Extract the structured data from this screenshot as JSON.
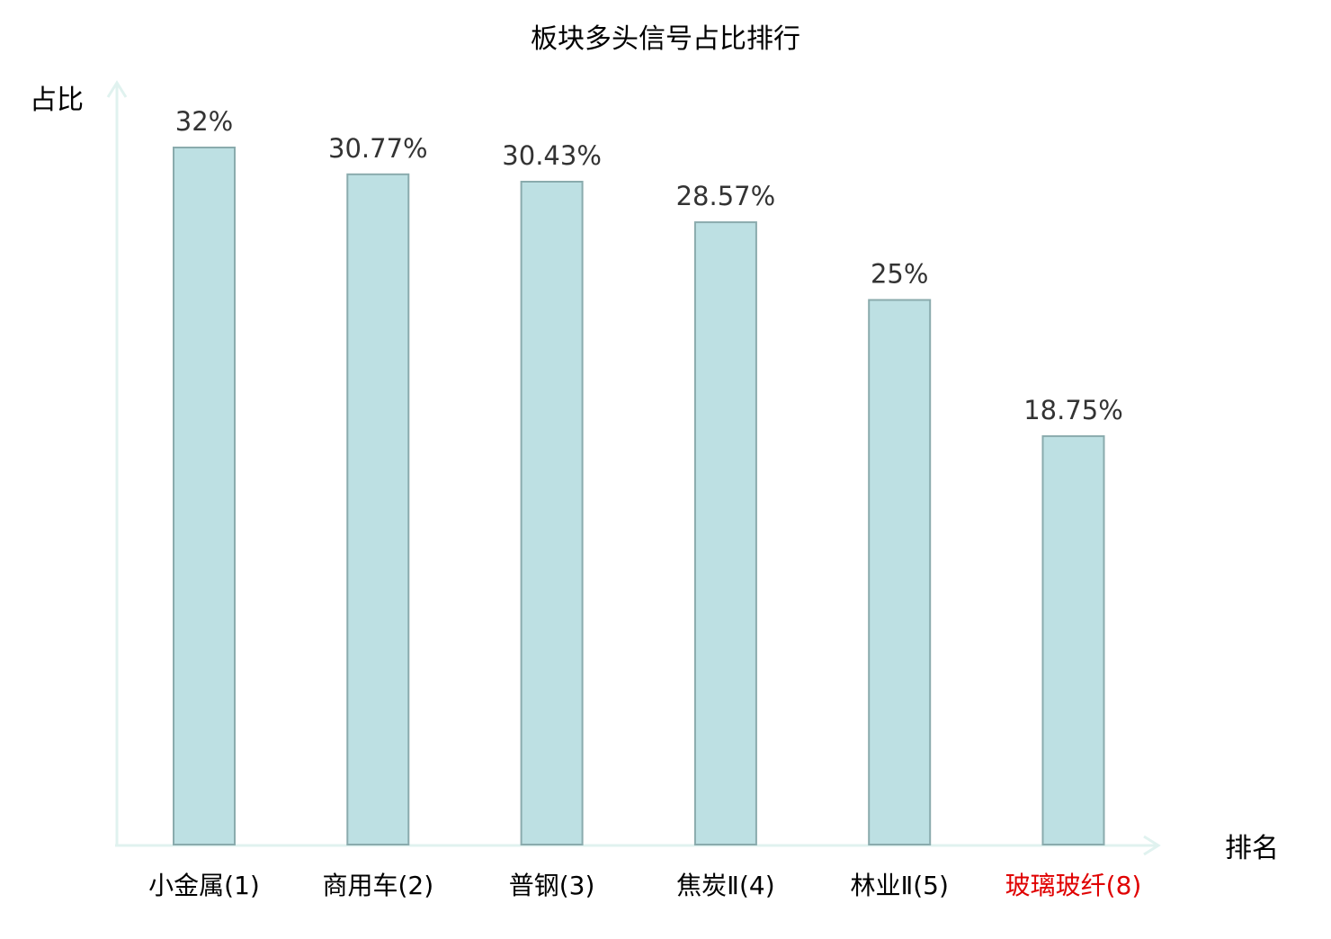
{
  "chart_data": {
    "type": "bar",
    "title": "板块多头信号占比排行",
    "xlabel": "排名",
    "ylabel": "占比",
    "categories": [
      "小金属(1)",
      "商用车(2)",
      "普钢(3)",
      "焦炭Ⅱ(4)",
      "林业Ⅱ(5)",
      "玻璃玻纤(8)"
    ],
    "values": [
      32,
      30.77,
      30.43,
      28.57,
      25,
      18.75
    ],
    "value_labels": [
      "32%",
      "30.77%",
      "30.43%",
      "28.57%",
      "25%",
      "18.75%"
    ],
    "highlight_index": 5,
    "ylim": [
      0,
      32
    ],
    "grid": false,
    "legend": "none"
  },
  "colors": {
    "bar_fill": "#bde0e3",
    "bar_stroke": "#8aabad",
    "axis": "#e0f2ef",
    "title": "#000000",
    "value_label": "#333333",
    "category_label": "#000000",
    "highlight": "#e00000"
  }
}
